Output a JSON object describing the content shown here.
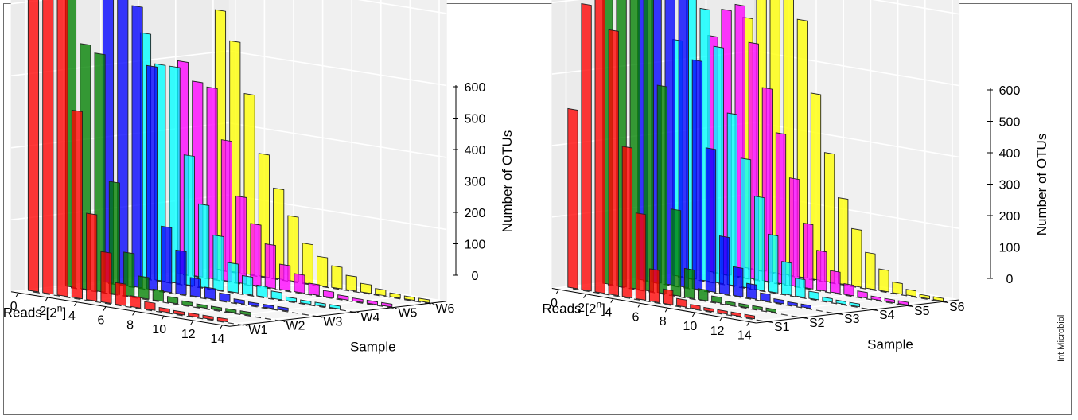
{
  "figure": {
    "credit": "Int Microbiol"
  },
  "chart_data": [
    {
      "type": "bar3d",
      "xlabel": "Reads [2",
      "xlabel_sup": "n",
      "xlabel_close": "]",
      "ylabel": "Sample",
      "zlabel": "Number of OTUs",
      "x_ticks": [
        0,
        2,
        4,
        6,
        8,
        10,
        12,
        14
      ],
      "sample_ticks": [
        "W1",
        "W2",
        "W3",
        "W4",
        "W5",
        "W6"
      ],
      "z_ticks": [
        0,
        100,
        200,
        300,
        400,
        500,
        600
      ],
      "zlim": [
        0,
        600
      ],
      "grid": true,
      "series": [
        {
          "sample": "W1",
          "color": "#ff0000",
          "values": [
            475,
            460,
            490,
            260,
            120,
            70,
            30,
            15,
            10,
            5,
            3,
            2,
            1,
            1,
            0
          ]
        },
        {
          "sample": "W2",
          "color": "#008000",
          "values": [
            400,
            340,
            330,
            155,
            60,
            30,
            15,
            8,
            5,
            3,
            2,
            1,
            1,
            0,
            0
          ]
        },
        {
          "sample": "W3",
          "color": "#0000ff",
          "values": [
            560,
            440,
            390,
            310,
            90,
            60,
            25,
            15,
            10,
            5,
            3,
            2,
            1,
            0,
            0
          ]
        },
        {
          "sample": "W4",
          "color": "#00ffff",
          "values": [
            340,
            300,
            300,
            180,
            115,
            75,
            40,
            25,
            15,
            10,
            5,
            3,
            2,
            1,
            0
          ]
        },
        {
          "sample": "W5",
          "color": "#ff00ff",
          "values": [
            295,
            270,
            265,
            195,
            120,
            85,
            60,
            35,
            25,
            15,
            8,
            5,
            3,
            2,
            1
          ]
        },
        {
          "sample": "W6",
          "color": "#ffff00",
          "values": [
            360,
            320,
            250,
            170,
            125,
            90,
            55,
            40,
            30,
            20,
            12,
            8,
            5,
            3,
            2
          ]
        }
      ]
    },
    {
      "type": "bar3d",
      "xlabel": "Reads [2",
      "xlabel_sup": "n",
      "xlabel_close": "]",
      "ylabel": "Sample",
      "zlabel": "Number of OTUs",
      "x_ticks": [
        0,
        2,
        4,
        6,
        8,
        10,
        12,
        14
      ],
      "sample_ticks": [
        "S1",
        "S2",
        "S3",
        "S4",
        "S5",
        "S6"
      ],
      "z_ticks": [
        0,
        100,
        200,
        300,
        400,
        500,
        600
      ],
      "zlim": [
        0,
        600
      ],
      "grid": true,
      "series": [
        {
          "sample": "S1",
          "color": "#ff0000",
          "values": [
            250,
            400,
            440,
            370,
            210,
            120,
            45,
            20,
            10,
            5,
            3,
            2,
            1,
            1,
            0
          ]
        },
        {
          "sample": "S2",
          "color": "#008000",
          "values": [
            410,
            480,
            500,
            440,
            290,
            120,
            40,
            15,
            8,
            4,
            2,
            1,
            1,
            0,
            0
          ]
        },
        {
          "sample": "S3",
          "color": "#0000ff",
          "values": [
            550,
            590,
            520,
            420,
            320,
            200,
            80,
            40,
            20,
            10,
            5,
            3,
            1,
            0,
            0
          ]
        },
        {
          "sample": "S4",
          "color": "#00ffff",
          "values": [
            330,
            400,
            380,
            330,
            240,
            180,
            130,
            80,
            45,
            25,
            10,
            5,
            2,
            1,
            0
          ]
        },
        {
          "sample": "S5",
          "color": "#ff00ff",
          "values": [
            330,
            370,
            380,
            330,
            270,
            210,
            150,
            90,
            55,
            30,
            15,
            8,
            4,
            2,
            1
          ]
        },
        {
          "sample": "S6",
          "color": "#ffff00",
          "values": [
            350,
            430,
            510,
            460,
            360,
            260,
            180,
            120,
            80,
            50,
            30,
            15,
            8,
            4,
            2
          ]
        }
      ]
    }
  ]
}
